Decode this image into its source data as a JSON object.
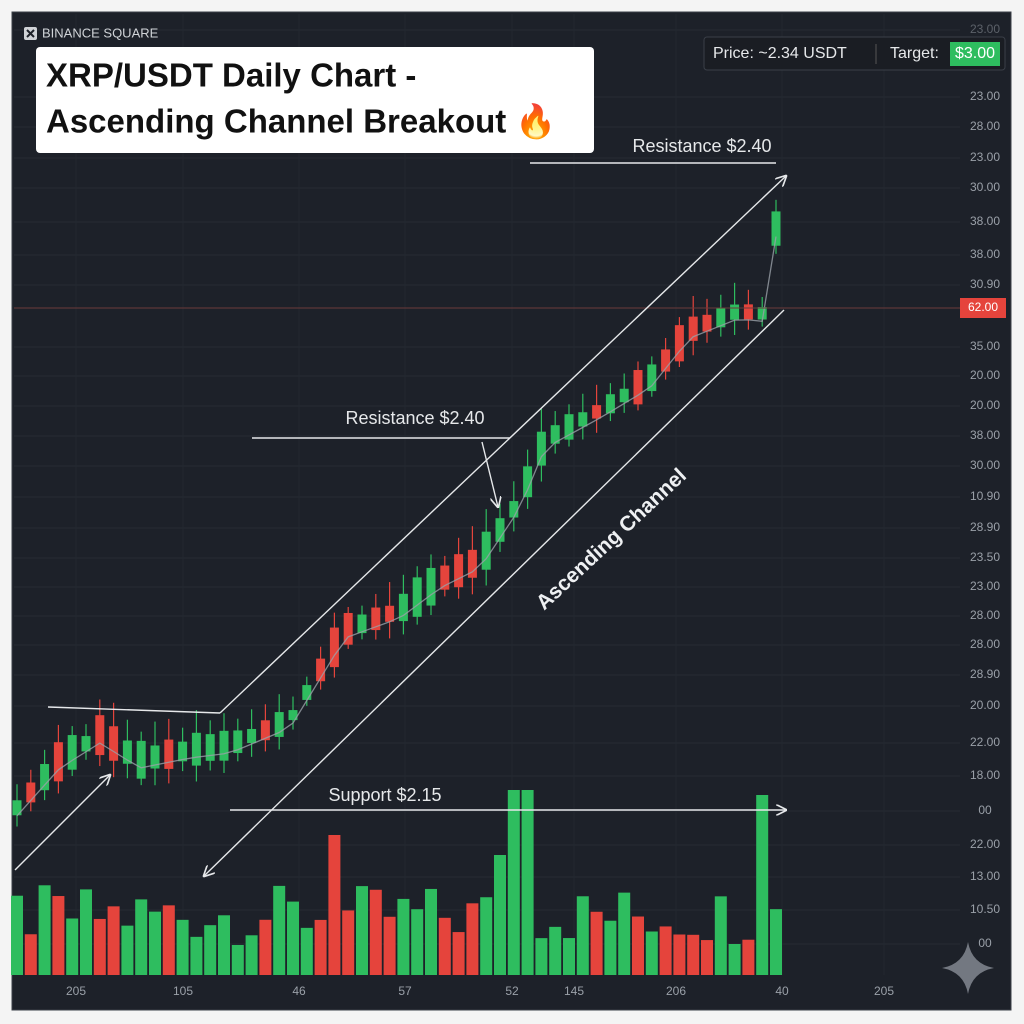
{
  "brand": "BINANCE SQUARE",
  "title": {
    "line1": "XRP/USDT Daily Chart -",
    "line2": "Ascending Channel Breakout 🔥"
  },
  "ticker": {
    "price": "Price: ~2.34 USDT",
    "target_label": "Target:",
    "target_value": "$3.00"
  },
  "annotations": {
    "resistance_top": "Resistance $2.40",
    "resistance_mid": "Resistance $2.40",
    "support": "Support $2.15",
    "channel": "Ascending Channel"
  },
  "price_tag": "62.00",
  "y_axis_labels": [
    "23.00",
    "23.00",
    "28.00",
    "23.00",
    "30.00",
    "38.00",
    "38.00",
    "30.90",
    "35.00",
    "20.00",
    "20.00",
    "38.00",
    "30.00",
    "10.90",
    "28.90",
    "23.50",
    "23.00",
    "28.00",
    "28.00",
    "28.90",
    "20.00",
    "22.00",
    "18.00",
    "00",
    "22.00",
    "13.00",
    "10.50",
    "00"
  ],
  "x_axis_labels": [
    "205",
    "105",
    "46",
    "57",
    "52",
    "145",
    "206",
    "40",
    "205"
  ]
}
